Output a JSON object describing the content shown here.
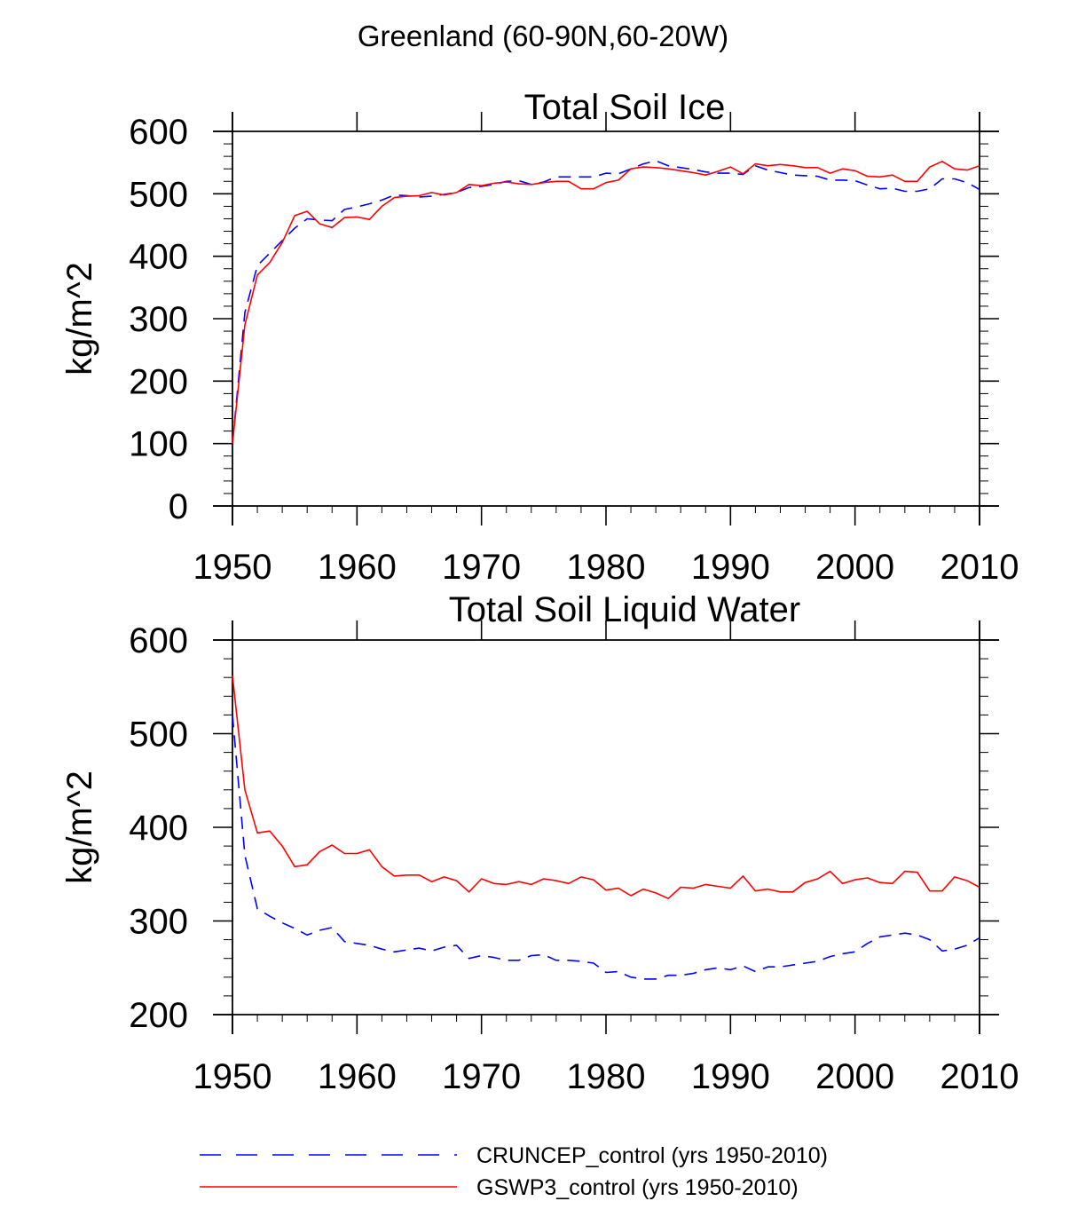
{
  "figure_title": "Greenland (60-90N,60-20W)",
  "legend": [
    {
      "label": "CRUNCEP_control (yrs 1950-2010)",
      "color": "#0000ff",
      "style": "dashed"
    },
    {
      "label": "GSWP3_control (yrs 1950-2010)",
      "color": "#ff0000",
      "style": "solid"
    }
  ],
  "chart_data": [
    {
      "type": "line",
      "title": "Total Soil Ice",
      "xlabel": "",
      "ylabel": "kg/m^2",
      "xlim": [
        1950,
        2010
      ],
      "ylim": [
        0,
        600
      ],
      "xticks": [
        1950,
        1960,
        1970,
        1980,
        1990,
        2000,
        2010
      ],
      "yticks": [
        0,
        100,
        200,
        300,
        400,
        500,
        600
      ],
      "x": [
        1950,
        1951,
        1952,
        1953,
        1954,
        1955,
        1956,
        1957,
        1958,
        1959,
        1960,
        1961,
        1962,
        1963,
        1964,
        1965,
        1966,
        1967,
        1968,
        1969,
        1970,
        1971,
        1972,
        1973,
        1974,
        1975,
        1976,
        1977,
        1978,
        1979,
        1980,
        1981,
        1982,
        1983,
        1984,
        1985,
        1986,
        1987,
        1988,
        1989,
        1990,
        1991,
        1992,
        1993,
        1994,
        1995,
        1996,
        1997,
        1998,
        1999,
        2000,
        2001,
        2002,
        2003,
        2004,
        2005,
        2006,
        2007,
        2008,
        2009,
        2010
      ],
      "series": [
        {
          "name": "CRUNCEP_control (yrs 1950-2010)",
          "color": "#0000ff",
          "style": "dashed",
          "values": [
            100,
            310,
            385,
            405,
            425,
            445,
            460,
            458,
            457,
            475,
            479,
            484,
            490,
            498,
            497,
            495,
            496,
            499,
            502,
            510,
            512,
            515,
            520,
            521,
            515,
            519,
            527,
            527,
            527,
            527,
            533,
            532,
            540,
            548,
            553,
            545,
            542,
            539,
            535,
            533,
            533,
            531,
            545,
            538,
            534,
            530,
            529,
            528,
            522,
            522,
            521,
            514,
            508,
            509,
            504,
            504,
            508,
            524,
            524,
            518,
            507
          ]
        },
        {
          "name": "GSWP3_control (yrs 1950-2010)",
          "color": "#ff0000",
          "style": "solid",
          "values": [
            100,
            290,
            370,
            390,
            422,
            465,
            472,
            452,
            446,
            462,
            463,
            459,
            480,
            494,
            496,
            497,
            502,
            498,
            502,
            515,
            513,
            517,
            519,
            516,
            515,
            518,
            520,
            520,
            508,
            508,
            518,
            522,
            540,
            543,
            542,
            540,
            537,
            534,
            530,
            536,
            543,
            532,
            548,
            545,
            547,
            545,
            542,
            542,
            533,
            540,
            537,
            528,
            527,
            530,
            520,
            520,
            543,
            552,
            540,
            538,
            545
          ]
        }
      ]
    },
    {
      "type": "line",
      "title": "Total Soil Liquid Water",
      "xlabel": "",
      "ylabel": "kg/m^2",
      "xlim": [
        1950,
        2010
      ],
      "ylim": [
        200,
        600
      ],
      "xticks": [
        1950,
        1960,
        1970,
        1980,
        1990,
        2000,
        2010
      ],
      "yticks": [
        200,
        300,
        400,
        500,
        600
      ],
      "x": [
        1950,
        1951,
        1952,
        1953,
        1954,
        1955,
        1956,
        1957,
        1958,
        1959,
        1960,
        1961,
        1962,
        1963,
        1964,
        1965,
        1966,
        1967,
        1968,
        1969,
        1970,
        1971,
        1972,
        1973,
        1974,
        1975,
        1976,
        1977,
        1978,
        1979,
        1980,
        1981,
        1982,
        1983,
        1984,
        1985,
        1986,
        1987,
        1988,
        1989,
        1990,
        1991,
        1992,
        1993,
        1994,
        1995,
        1996,
        1997,
        1998,
        1999,
        2000,
        2001,
        2002,
        2003,
        2004,
        2005,
        2006,
        2007,
        2008,
        2009,
        2010
      ],
      "series": [
        {
          "name": "CRUNCEP_control (yrs 1950-2010)",
          "color": "#0000ff",
          "style": "dashed",
          "values": [
            520,
            370,
            313,
            305,
            298,
            292,
            285,
            290,
            293,
            278,
            276,
            274,
            270,
            267,
            269,
            271,
            268,
            272,
            274,
            260,
            263,
            261,
            258,
            258,
            263,
            264,
            258,
            258,
            257,
            255,
            245,
            246,
            240,
            238,
            238,
            242,
            242,
            244,
            248,
            250,
            248,
            252,
            246,
            251,
            251,
            253,
            255,
            257,
            262,
            265,
            267,
            276,
            283,
            285,
            287,
            285,
            280,
            268,
            270,
            274,
            282
          ]
        },
        {
          "name": "GSWP3_control (yrs 1950-2010)",
          "color": "#ff0000",
          "style": "solid",
          "values": [
            562,
            440,
            394,
            396,
            380,
            358,
            360,
            374,
            381,
            372,
            372,
            376,
            358,
            348,
            349,
            349,
            342,
            347,
            343,
            331,
            345,
            340,
            339,
            342,
            339,
            345,
            343,
            340,
            347,
            344,
            333,
            335,
            327,
            334,
            330,
            324,
            336,
            335,
            339,
            337,
            335,
            348,
            332,
            334,
            331,
            331,
            341,
            345,
            353,
            340,
            344,
            346,
            341,
            340,
            353,
            352,
            332,
            332,
            347,
            343,
            336
          ]
        }
      ]
    }
  ]
}
